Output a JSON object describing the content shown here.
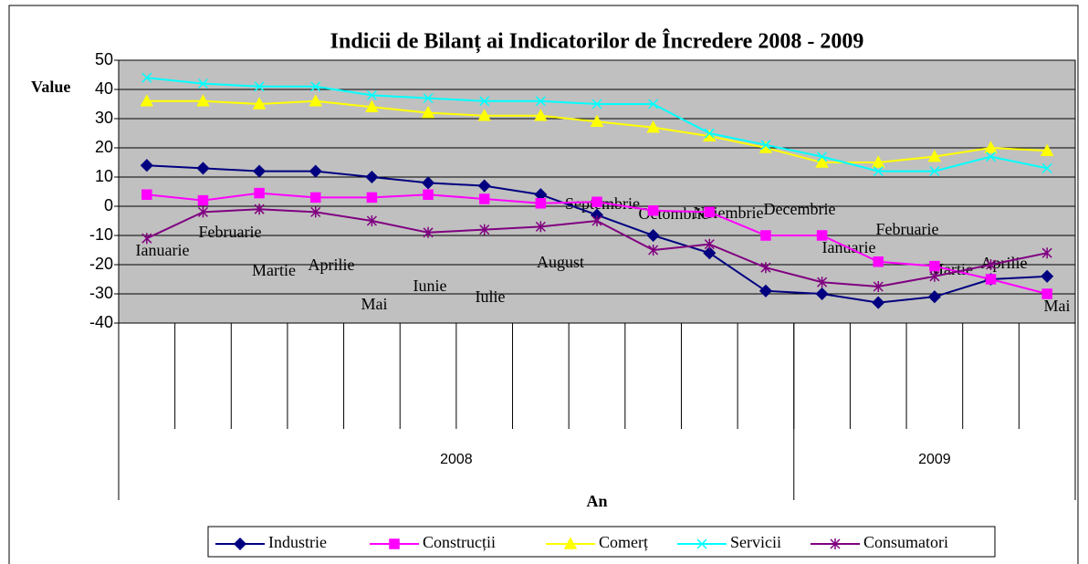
{
  "chart_data": {
    "type": "line",
    "title": "Indicii de Bilanț ai Indicatorilor de Încredere 2008 - 2009",
    "y_label": "Value",
    "x_label": "An",
    "categories": [
      "Ianuarie",
      "Februarie",
      "Martie",
      "Aprilie",
      "Mai",
      "Iunie",
      "Iulie",
      "August",
      "Septembrie",
      "Octombrie",
      "Noiembrie",
      "Decembrie",
      "Ianuarie",
      "Februarie",
      "Martie",
      "Aprilie",
      "Mai"
    ],
    "groups": [
      {
        "label": "2008",
        "count": 12
      },
      {
        "label": "2009",
        "count": 5
      }
    ],
    "ylim": [
      -40,
      50
    ],
    "yticks": [
      -40,
      -30,
      -20,
      -10,
      0,
      10,
      20,
      30,
      40,
      50
    ],
    "grid": true,
    "legend": "bottom",
    "series": [
      {
        "name": "Industrie",
        "color": "#000080",
        "marker": "diamond",
        "values": [
          14,
          13,
          12,
          12,
          10,
          8,
          7,
          4,
          -3,
          -10,
          -16,
          -29,
          -30,
          -33,
          -31,
          -25,
          -24
        ]
      },
      {
        "name": "Construcții",
        "color": "#ff00ff",
        "marker": "square",
        "values": [
          4,
          2,
          4.5,
          3,
          3,
          4,
          2.5,
          1,
          1.5,
          -1.5,
          -2,
          -10,
          -10,
          -19,
          -20.5,
          -25,
          -30
        ]
      },
      {
        "name": "Comerț",
        "color": "#ffff00",
        "marker": "triangle",
        "values": [
          36,
          36,
          35,
          36,
          34,
          32,
          31,
          31,
          29,
          27,
          24,
          20,
          15,
          15,
          17,
          20,
          19
        ]
      },
      {
        "name": "Servicii",
        "color": "#00ffff",
        "marker": "x",
        "values": [
          44,
          42,
          41,
          41,
          38,
          37,
          36,
          36,
          35,
          35,
          25,
          21,
          17,
          12,
          12,
          17,
          13
        ]
      },
      {
        "name": "Consumatori",
        "color": "#800080",
        "marker": "asterisk",
        "values": [
          -11,
          -2,
          -1,
          -2,
          -5,
          -9,
          -8,
          -7,
          -5,
          -15,
          -13,
          -21,
          -26,
          -27.5,
          -24,
          -20,
          -16
        ]
      }
    ]
  }
}
